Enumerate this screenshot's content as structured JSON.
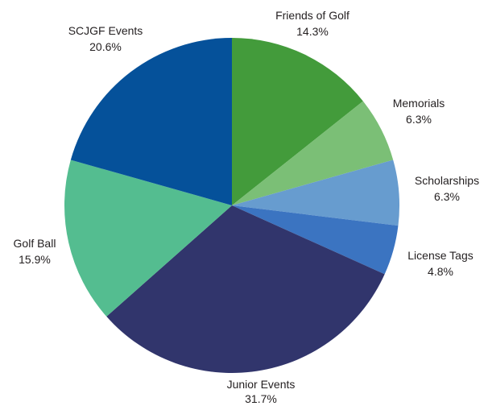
{
  "chart_data": {
    "type": "pie",
    "start_angle_deg": 0,
    "direction": "clockwise",
    "slices": [
      {
        "label": "Friends of Golf",
        "value": 14.3,
        "value_label": "14.3%",
        "color": "#439b3b"
      },
      {
        "label": "Memorials",
        "value": 6.3,
        "value_label": "6.3%",
        "color": "#7bbf76"
      },
      {
        "label": "Scholarships",
        "value": 6.3,
        "value_label": "6.3%",
        "color": "#679ccf"
      },
      {
        "label": "License Tags",
        "value": 4.8,
        "value_label": "4.8%",
        "color": "#3b74c1"
      },
      {
        "label": "Junior Events",
        "value": 31.7,
        "value_label": "31.7%",
        "color": "#31356c"
      },
      {
        "label": "Golf Ball",
        "value": 15.9,
        "value_label": "15.9%",
        "color": "#54bd90"
      },
      {
        "label": "SCJGF Events",
        "value": 20.6,
        "value_label": "20.6%",
        "color": "#05519a"
      }
    ]
  }
}
